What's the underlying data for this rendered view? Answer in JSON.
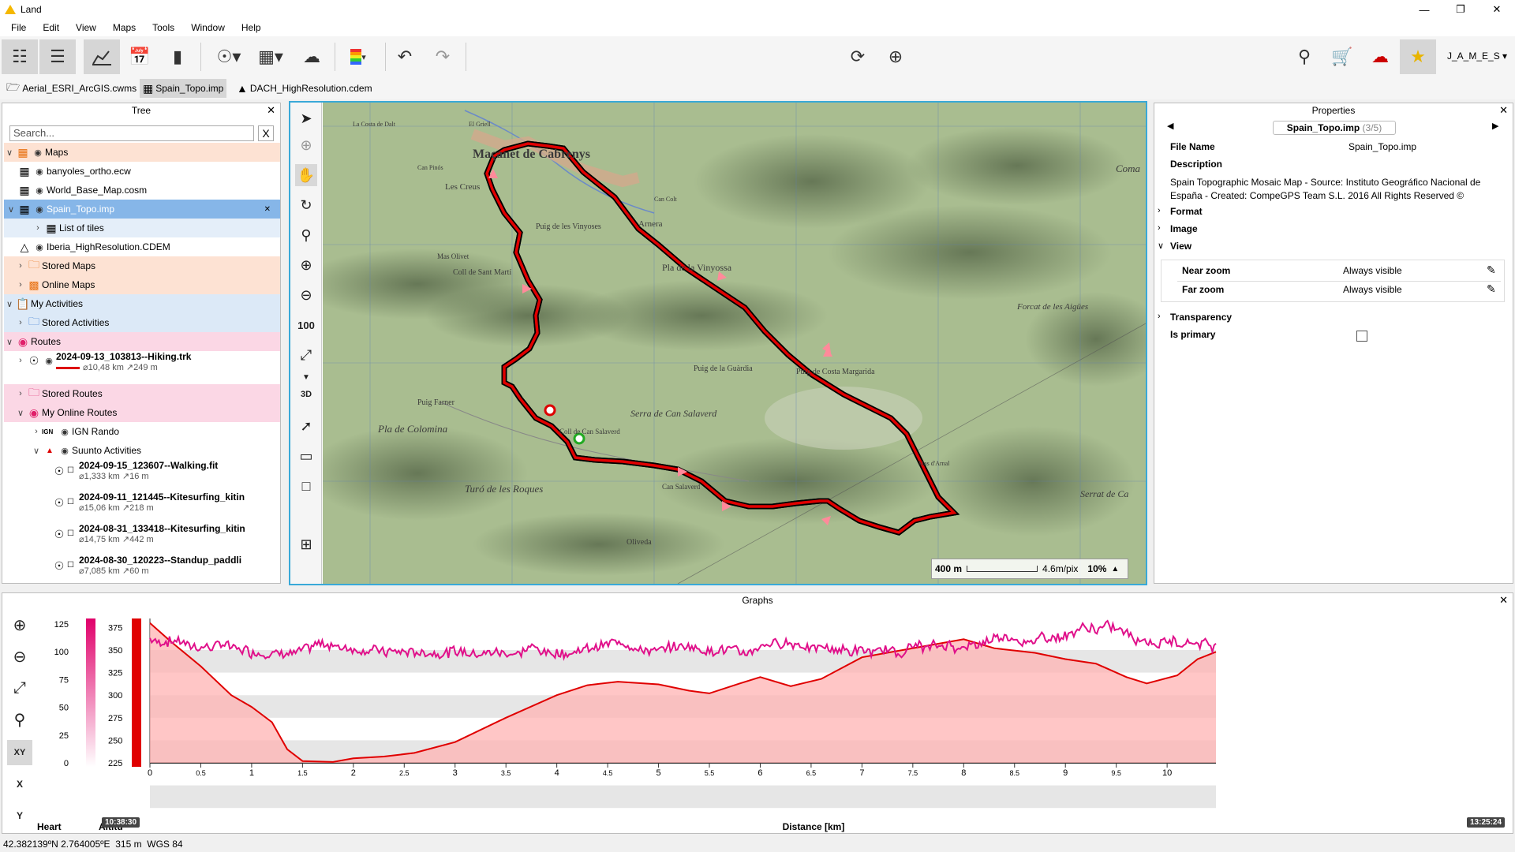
{
  "window": {
    "title": "Land"
  },
  "menu": [
    "File",
    "Edit",
    "View",
    "Maps",
    "Tools",
    "Window",
    "Help"
  ],
  "toolbar": {
    "user": "J_A_M_E_S",
    "icons": [
      "tree-view-icon",
      "checklist-icon",
      "graph-icon",
      "calendar-icon",
      "book-icon",
      "route-add-icon",
      "map-icon",
      "weather-icon",
      "color-scale-icon",
      "undo-icon",
      "redo-icon",
      "route-edit-icon",
      "route-play-icon",
      "search-icon",
      "cart-icon",
      "cloud-sync-icon",
      "star-icon"
    ]
  },
  "open_files": [
    {
      "label": "Aerial_ESRI_ArcGIS.cwms",
      "active": false
    },
    {
      "label": "Spain_Topo.imp",
      "active": true
    },
    {
      "label": "DACH_HighResolution.cdem",
      "active": false
    }
  ],
  "tree": {
    "title": "Tree",
    "search_placeholder": "Search...",
    "clear": "X",
    "items": [
      {
        "label": "Maps"
      },
      {
        "label": "banyoles_ortho.ecw"
      },
      {
        "label": "World_Base_Map.cosm"
      },
      {
        "label": "Spain_Topo.imp"
      },
      {
        "label": "List of tiles"
      },
      {
        "label": "Iberia_HighResolution.CDEM"
      },
      {
        "label": "Stored Maps"
      },
      {
        "label": "Online Maps"
      },
      {
        "label": "My Activities"
      },
      {
        "label": "Stored Activities"
      },
      {
        "label": "Routes"
      },
      {
        "label": "2024-09-13_103813--Hiking.trk",
        "distance": "10,48 km",
        "ascent": "249 m"
      },
      {
        "label": "Stored Routes"
      },
      {
        "label": "My Online Routes"
      },
      {
        "label": "IGN Rando",
        "prefix": "IGN"
      },
      {
        "label": "Suunto Activities"
      },
      {
        "label": "2024-09-15_123607--Walking.fit",
        "distance": "1,333 km",
        "ascent": "16 m"
      },
      {
        "label": "2024-09-11_121445--Kitesurfing_kitin",
        "distance": "15,06 km",
        "ascent": "218 m"
      },
      {
        "label": "2024-08-31_133418--Kitesurfing_kitin",
        "distance": "14,75 km",
        "ascent": "442 m"
      },
      {
        "label": "2024-08-30_120223--Standup_paddli",
        "distance": "7,085 km",
        "ascent": "60 m"
      }
    ]
  },
  "map": {
    "labels": [
      "Maçanet de Cabrenys",
      "Les Creus",
      "Puig de les Vinyoses",
      "Arnera",
      "Pla de la Vinyossa",
      "Coll de Sant Martí",
      "Mas Olivet",
      "Puig Farner",
      "Pla de Colomina",
      "Serra de Can Salaverd",
      "Puig de la Guàrdia",
      "Puig de Costa Margarida",
      "Forcat de les Aigües",
      "Turó de les Roques",
      "Coll de Can Salaverd",
      "Can Salaverd",
      "Serrat de Ca",
      "Oliveda",
      "Coma",
      "Mas d'Arnal",
      "La Costa de Dalt",
      "El Griell",
      "Can Pinós",
      "Can Colt"
    ],
    "scale": {
      "distance": "400 m",
      "resolution": "4.6m/pix",
      "zoom": "10%"
    }
  },
  "properties": {
    "title": "Properties",
    "nav_label": "Spain_Topo.imp",
    "nav_count": "(3/5)",
    "file_name_label": "File Name",
    "file_name_value": "Spain_Topo.imp",
    "description_label": "Description",
    "description_value": "Spain Topographic Mosaic Map - Source: Instituto Geográfico Nacional de España - Created: CompeGPS Team S.L. 2016 All Rights Reserved ©",
    "format_label": "Format",
    "image_label": "Image",
    "view_label": "View",
    "near_zoom_label": "Near zoom",
    "near_zoom_value": "Always visible",
    "far_zoom_label": "Far zoom",
    "far_zoom_value": "Always visible",
    "transparency_label": "Transparency",
    "is_primary_label": "Is primary",
    "is_primary_checked": false
  },
  "graphs": {
    "title": "Graphs",
    "legend_heart": "Heart",
    "legend_alt": "Altitu",
    "xlabel": "Distance [km]",
    "time_start": "10:38:30",
    "time_end": "13:25:24",
    "heart_ticks": [
      "125",
      "100",
      "75",
      "50",
      "25",
      "0"
    ],
    "alt_ticks": [
      "375",
      "350",
      "325",
      "300",
      "275",
      "250",
      "225"
    ],
    "x_ticks": [
      "0",
      "0.5",
      "1",
      "1.5",
      "2",
      "2.5",
      "3",
      "3.5",
      "4",
      "4.5",
      "5",
      "5.5",
      "6",
      "6.5",
      "7",
      "7.5",
      "8",
      "8.5",
      "9",
      "9.5",
      "10"
    ]
  },
  "chart_data": {
    "type": "line",
    "xlabel": "Distance [km]",
    "x_range": [
      0,
      10.48
    ],
    "series": [
      {
        "name": "Altitu",
        "axis": "right",
        "ylim": [
          225,
          385
        ],
        "x": [
          0,
          0.2,
          0.5,
          0.8,
          1.0,
          1.2,
          1.35,
          1.5,
          1.8,
          2.0,
          2.3,
          2.6,
          3.0,
          3.5,
          4.0,
          4.3,
          4.6,
          5.0,
          5.3,
          5.5,
          5.8,
          6.0,
          6.3,
          6.6,
          7.0,
          7.4,
          7.8,
          8.0,
          8.3,
          8.7,
          9.0,
          9.3,
          9.6,
          9.8,
          10.1,
          10.3,
          10.48
        ],
        "values": [
          380,
          360,
          332,
          300,
          287,
          270,
          240,
          227,
          226,
          230,
          232,
          236,
          248,
          275,
          300,
          311,
          315,
          312,
          305,
          302,
          313,
          320,
          310,
          318,
          342,
          350,
          358,
          362,
          352,
          347,
          340,
          335,
          320,
          313,
          322,
          340,
          348
        ]
      },
      {
        "name": "Heart",
        "axis": "left",
        "ylim": [
          0,
          130
        ],
        "values_summary": "fluctuates between ~95 and ~130 bpm"
      }
    ]
  },
  "status": {
    "coords": "42.382139ºN 2.764005ºE",
    "altitude": "315 m",
    "datum": "WGS 84"
  }
}
